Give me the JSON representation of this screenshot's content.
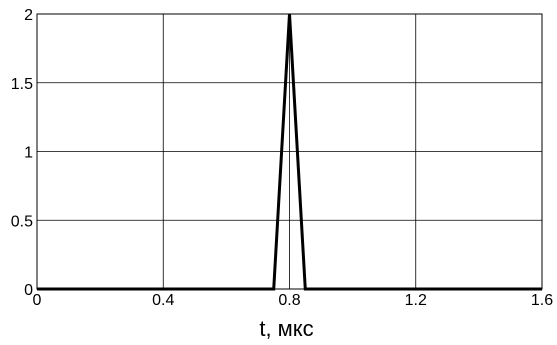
{
  "chart_data": {
    "type": "line",
    "xlabel": "t,  мкс",
    "ylabel": "",
    "xlim": [
      0,
      1.6
    ],
    "ylim": [
      0,
      2
    ],
    "x_ticks": [
      "0",
      "0.4",
      "0.8",
      "1.2",
      "1.6"
    ],
    "y_ticks": [
      "0",
      "0.5",
      "1",
      "1.5",
      "2"
    ],
    "grid": true,
    "series": [
      {
        "x": [
          0,
          0.75,
          0.8,
          0.85,
          1.6
        ],
        "y": [
          0,
          0,
          2,
          0,
          0
        ]
      }
    ],
    "line_color": "#000000",
    "grid_color": "#000000"
  }
}
